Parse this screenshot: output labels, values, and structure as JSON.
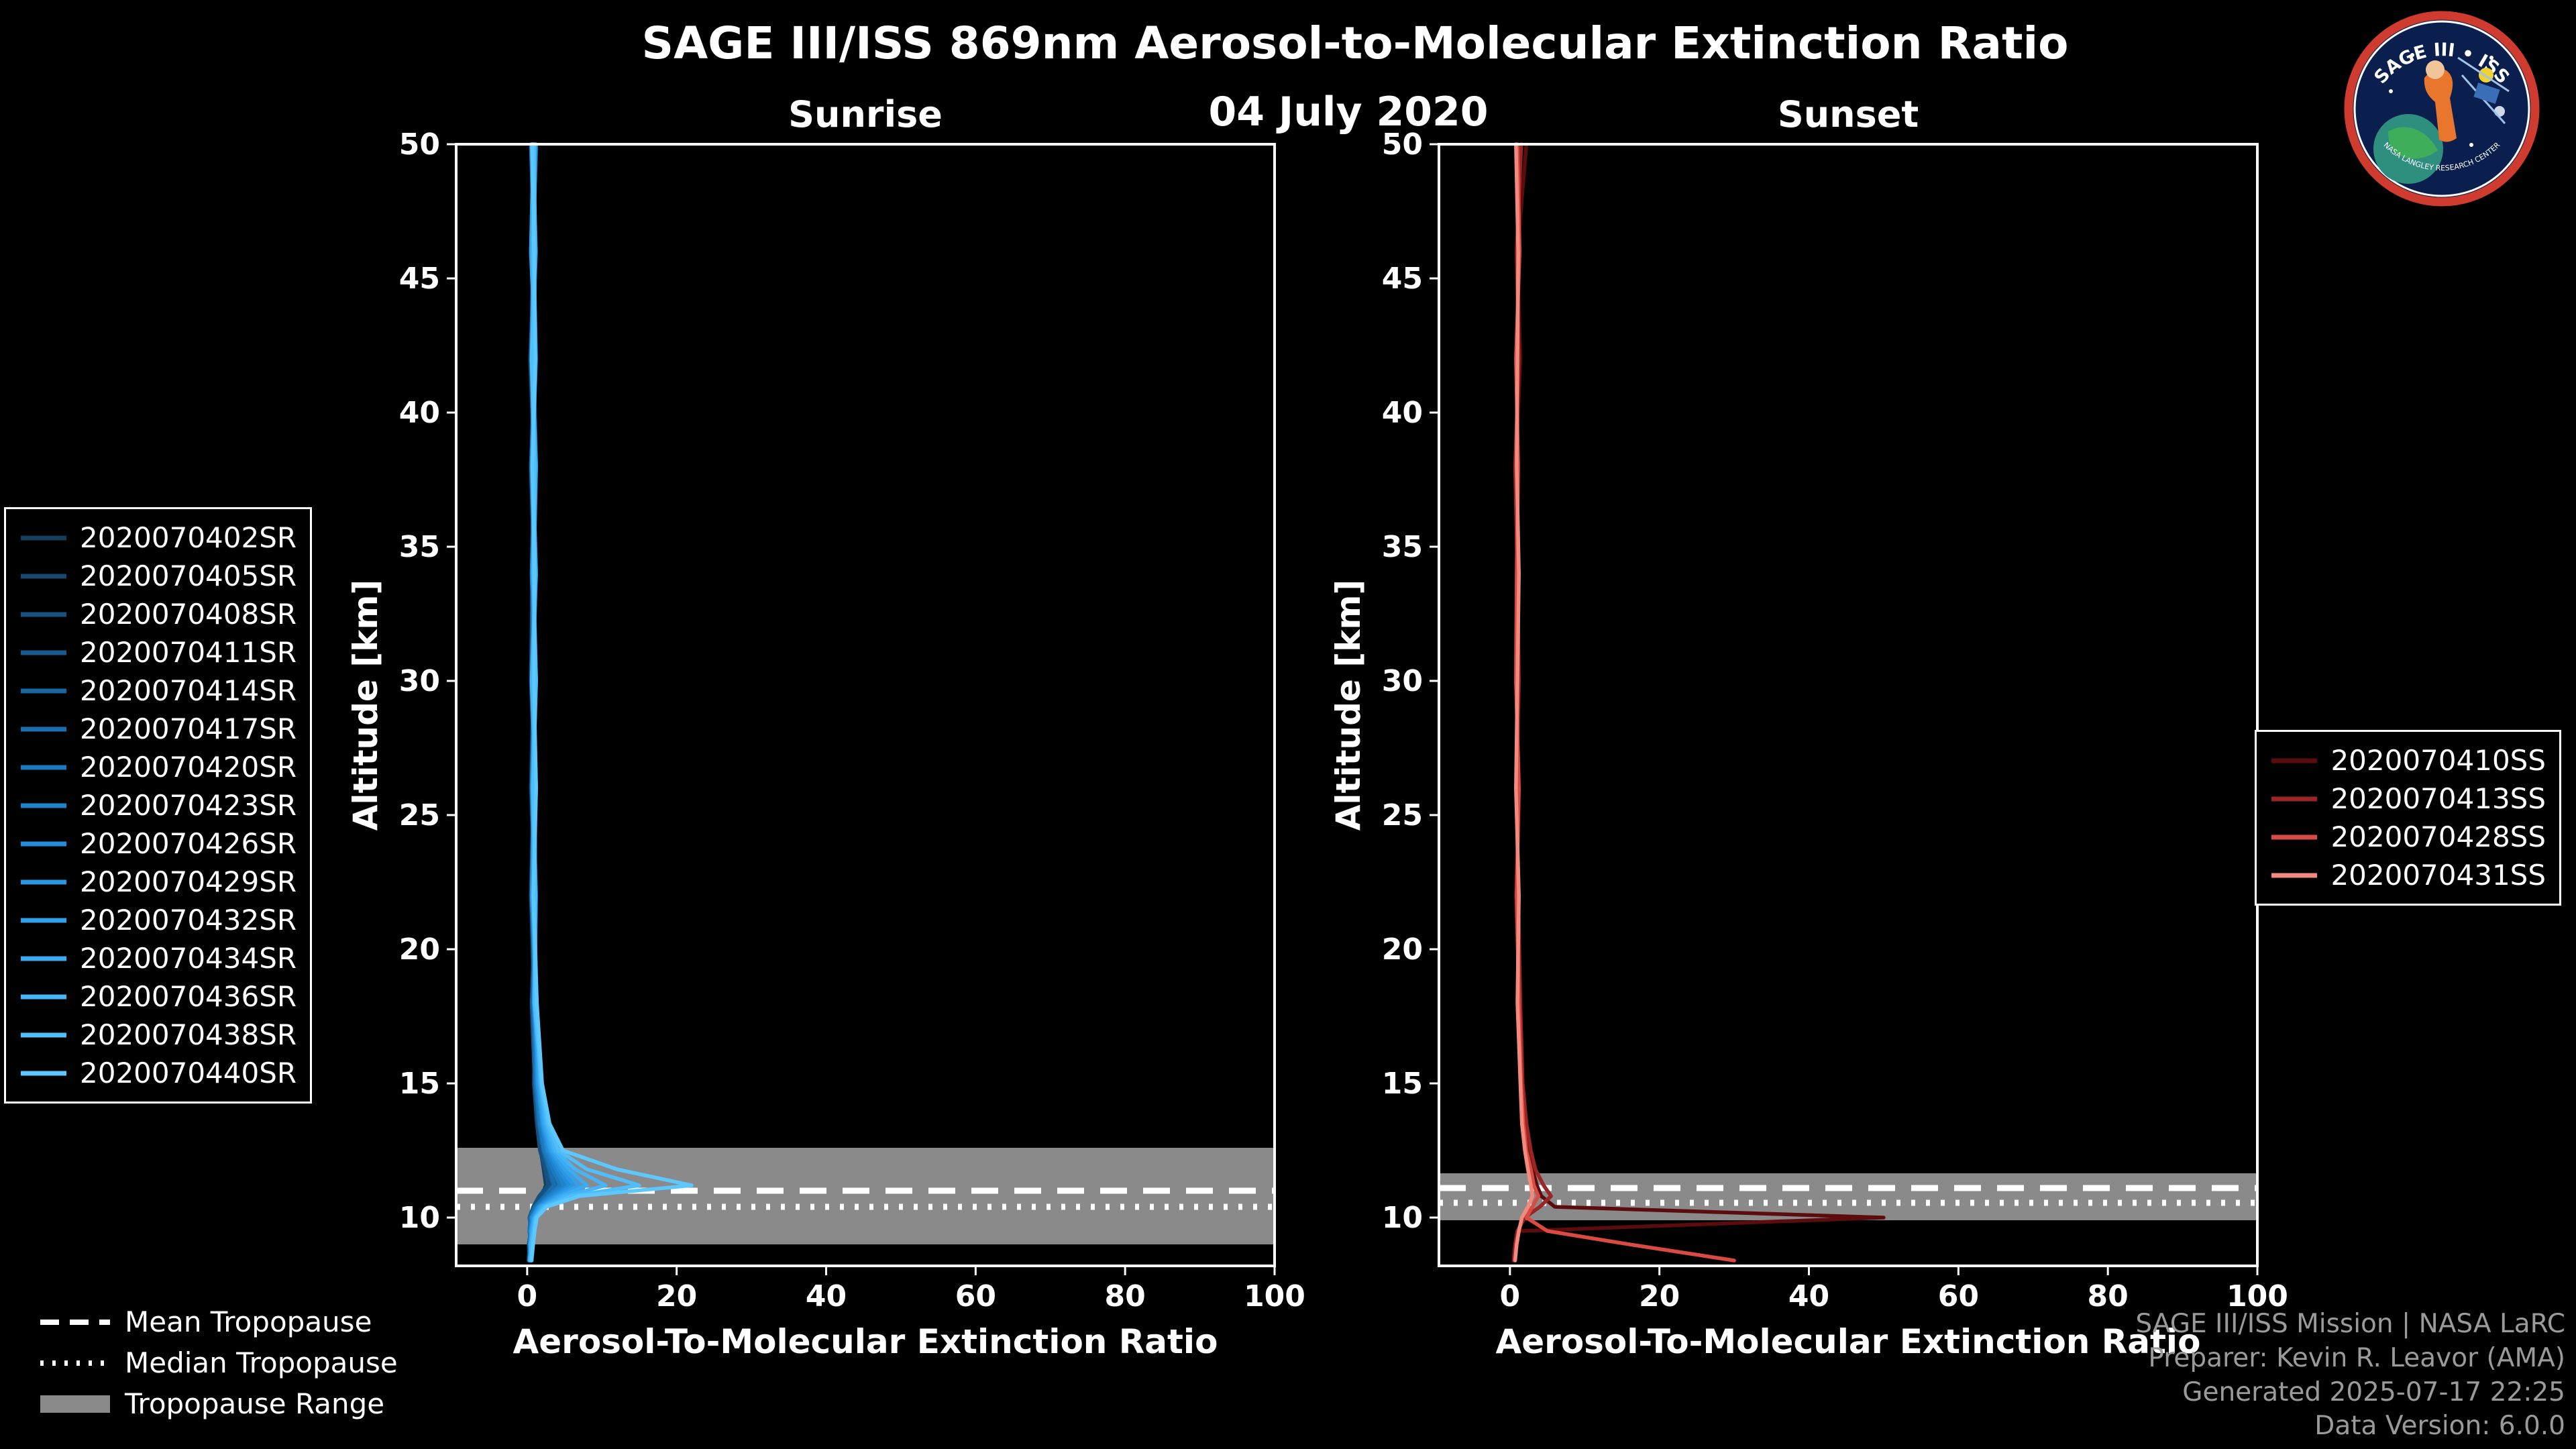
{
  "title": "SAGE III/ISS 869nm Aerosol-to-Molecular Extinction Ratio",
  "subtitle": "04 July 2020",
  "logo": {
    "title": "SAGE III • ISS",
    "ring_text": "NASA LANGLEY RESEARCH CENTER"
  },
  "footer": {
    "lines": [
      "SAGE III/ISS Mission | NASA LaRC",
      "Preparer: Kevin R. Leavor (AMA)",
      "Generated 2025-07-17 22:25",
      "Data Version: 6.0.0"
    ]
  },
  "tropopause_legend": [
    {
      "label": "Mean Tropopause",
      "style": "dashed"
    },
    {
      "label": "Median Tropopause",
      "style": "dotted"
    },
    {
      "label": "Tropopause Range",
      "style": "patch"
    }
  ],
  "style_colors": {
    "background": "#000000",
    "foreground": "#ffffff",
    "tropopause_band": "#8a8a8a",
    "footer_text": "#9a9a9a"
  },
  "chart_data": [
    {
      "type": "line",
      "title": "Sunrise",
      "xlabel": "Aerosol-To-Molecular Extinction Ratio",
      "ylabel": "Altitude [km]",
      "xlim": [
        -9.5,
        100
      ],
      "ylim": [
        8.2,
        50
      ],
      "x_ticks": [
        0,
        20,
        40,
        60,
        80,
        100
      ],
      "y_ticks": [
        50,
        45,
        40,
        35,
        30,
        25,
        20,
        15,
        10
      ],
      "grid": false,
      "legend_position": "left-outside",
      "tropopause": {
        "mean": 11.0,
        "median": 10.4,
        "range": [
          9.0,
          12.6
        ]
      },
      "alts": [
        50,
        46,
        42,
        38,
        34,
        30,
        26,
        22,
        18,
        15,
        13.5,
        12.5,
        11.8,
        11.2,
        10.8,
        10.4,
        10.0,
        9.5,
        9.0,
        8.4
      ],
      "series": [
        {
          "name": "2020070402SR",
          "color": "#14405f",
          "vals": [
            0.9,
            0.5,
            1.1,
            0.7,
            1.2,
            0.8,
            0.5,
            1.0,
            0.7,
            1.1,
            1.4,
            1.8,
            2.2,
            2.5,
            1.8,
            0.9,
            0.4,
            0.6,
            0.3,
            0.2
          ]
        },
        {
          "name": "2020070405SR",
          "color": "#15496f",
          "vals": [
            0.6,
            1.0,
            0.4,
            0.9,
            0.6,
            1.1,
            0.8,
            0.5,
            0.9,
            1.2,
            1.6,
            2.0,
            2.6,
            3.0,
            2.0,
            1.0,
            0.5,
            0.3,
            0.5,
            0.4
          ]
        },
        {
          "name": "2020070408SR",
          "color": "#16527f",
          "vals": [
            1.1,
            0.6,
            0.9,
            1.2,
            0.7,
            0.5,
            1.0,
            0.8,
            1.1,
            0.9,
            1.3,
            1.7,
            2.4,
            2.8,
            1.6,
            0.8,
            0.3,
            0.5,
            0.2,
            0.3
          ]
        },
        {
          "name": "2020070411SR",
          "color": "#175c8f",
          "vals": [
            0.7,
            1.2,
            0.6,
            0.8,
            1.0,
            0.7,
            0.9,
            1.1,
            0.6,
            1.0,
            1.5,
            2.1,
            2.8,
            3.4,
            2.2,
            1.1,
            0.6,
            0.4,
            0.3,
            0.2
          ]
        },
        {
          "name": "2020070414SR",
          "color": "#18659f",
          "vals": [
            0.8,
            0.6,
            1.0,
            0.5,
            0.9,
            1.2,
            0.7,
            0.9,
            1.2,
            1.4,
            1.8,
            2.4,
            3.2,
            4.0,
            2.6,
            1.2,
            0.5,
            0.7,
            0.4,
            0.3
          ]
        },
        {
          "name": "2020070417SR",
          "color": "#196fae",
          "vals": [
            1.0,
            0.8,
            0.5,
            1.1,
            0.8,
            0.6,
            1.1,
            0.7,
            0.9,
            1.1,
            1.6,
            2.2,
            3.0,
            3.6,
            2.4,
            1.0,
            0.4,
            0.3,
            0.6,
            0.4
          ]
        },
        {
          "name": "2020070420SR",
          "color": "#1b79be",
          "vals": [
            0.5,
            0.9,
            1.2,
            0.7,
            1.1,
            0.9,
            0.6,
            1.0,
            0.8,
            1.2,
            1.7,
            2.3,
            3.4,
            4.4,
            2.8,
            1.3,
            0.6,
            0.5,
            0.3,
            0.5
          ]
        },
        {
          "name": "2020070423SR",
          "color": "#1e83cd",
          "vals": [
            0.9,
            0.7,
            0.8,
            1.0,
            0.6,
            1.0,
            0.8,
            1.2,
            1.0,
            1.3,
            1.9,
            2.6,
            3.8,
            5.0,
            3.0,
            1.4,
            0.7,
            0.4,
            0.5,
            0.3
          ]
        },
        {
          "name": "2020070426SR",
          "color": "#238dda",
          "vals": [
            0.7,
            1.1,
            0.9,
            0.6,
            1.0,
            0.8,
            1.2,
            0.9,
            1.1,
            1.5,
            2.0,
            2.8,
            4.2,
            5.6,
            3.4,
            1.5,
            0.6,
            0.8,
            0.4,
            0.6
          ]
        },
        {
          "name": "2020070429SR",
          "color": "#2a97e4",
          "vals": [
            1.2,
            0.8,
            0.6,
            0.9,
            0.7,
            1.1,
            0.9,
            0.6,
            1.2,
            1.4,
            2.1,
            3.0,
            4.6,
            6.2,
            3.8,
            1.6,
            0.8,
            0.5,
            0.7,
            0.4
          ]
        },
        {
          "name": "2020070432SR",
          "color": "#32a1ec",
          "vals": [
            0.8,
            0.5,
            1.1,
            0.8,
            1.2,
            0.7,
            1.0,
            1.1,
            0.9,
            1.6,
            2.2,
            3.2,
            5.0,
            7.0,
            4.2,
            1.8,
            0.9,
            0.6,
            0.4,
            0.5
          ]
        },
        {
          "name": "2020070434SR",
          "color": "#3babf3",
          "vals": [
            0.6,
            1.0,
            0.7,
            1.2,
            0.9,
            1.0,
            0.7,
            0.9,
            1.3,
            1.7,
            2.4,
            3.5,
            5.6,
            8.0,
            4.6,
            2.0,
            1.0,
            0.7,
            0.6,
            0.3
          ]
        },
        {
          "name": "2020070436SR",
          "color": "#45b5f8",
          "vals": [
            1.0,
            0.7,
            0.9,
            0.8,
            1.1,
            0.6,
            1.1,
            1.0,
            1.2,
            1.8,
            2.6,
            3.8,
            6.4,
            10.5,
            5.2,
            2.2,
            1.1,
            0.8,
            0.5,
            0.6
          ]
        },
        {
          "name": "2020070438SR",
          "color": "#50befb",
          "vals": [
            0.9,
            1.1,
            0.6,
            1.0,
            0.8,
            1.2,
            0.8,
            1.1,
            1.0,
            1.9,
            2.8,
            4.2,
            8.0,
            15.0,
            6.0,
            2.4,
            1.2,
            0.9,
            0.7,
            0.5
          ]
        },
        {
          "name": "2020070440SR",
          "color": "#5cc8fe",
          "vals": [
            0.7,
            0.9,
            1.1,
            0.7,
            1.0,
            0.9,
            1.2,
            0.8,
            1.3,
            2.0,
            3.0,
            4.8,
            12.0,
            22.0,
            7.0,
            2.6,
            1.3,
            1.0,
            0.8,
            0.6
          ]
        }
      ]
    },
    {
      "type": "line",
      "title": "Sunset",
      "xlabel": "Aerosol-To-Molecular Extinction Ratio",
      "ylabel": "Altitude [km]",
      "xlim": [
        -9.5,
        100
      ],
      "ylim": [
        8.2,
        50
      ],
      "x_ticks": [
        0,
        20,
        40,
        60,
        80,
        100
      ],
      "y_ticks": [
        50,
        45,
        40,
        35,
        30,
        25,
        20,
        15,
        10
      ],
      "grid": false,
      "legend_position": "right-outside",
      "tropopause": {
        "mean": 11.1,
        "median": 10.55,
        "range": [
          9.9,
          11.65
        ]
      },
      "alts": [
        50,
        46,
        42,
        38,
        34,
        30,
        26,
        22,
        18,
        15,
        13.5,
        12.5,
        11.8,
        11.2,
        10.8,
        10.4,
        10.0,
        9.5,
        9.0,
        8.4
      ],
      "series": [
        {
          "name": "2020070410SS",
          "color": "#5c0c0c",
          "vals": [
            2.2,
            1.0,
            1.4,
            0.8,
            1.1,
            0.9,
            1.2,
            0.8,
            1.3,
            1.6,
            2.0,
            2.4,
            3.0,
            3.6,
            4.2,
            6.0,
            50.0,
            1.5,
            null,
            null
          ]
        },
        {
          "name": "2020070413SS",
          "color": "#992525",
          "vals": [
            1.5,
            0.9,
            1.2,
            0.7,
            1.0,
            1.2,
            0.9,
            1.1,
            1.4,
            1.7,
            2.2,
            2.8,
            3.4,
            4.5,
            5.5,
            4.0,
            2.0,
            1.0,
            0.7,
            0.5
          ]
        },
        {
          "name": "2020070428SS",
          "color": "#d94a42",
          "vals": [
            1.0,
            1.3,
            0.8,
            1.1,
            0.9,
            0.8,
            1.2,
            0.9,
            1.2,
            1.5,
            1.8,
            2.2,
            2.8,
            3.2,
            3.8,
            3.0,
            2.2,
            5.0,
            16.0,
            30.0
          ]
        },
        {
          "name": "2020070431SS",
          "color": "#f28b7d",
          "vals": [
            0.8,
            1.1,
            1.0,
            0.9,
            1.2,
            1.0,
            0.8,
            1.2,
            1.0,
            1.4,
            1.6,
            2.0,
            2.4,
            2.8,
            3.0,
            2.4,
            1.6,
            1.2,
            0.9,
            0.7
          ]
        }
      ]
    }
  ]
}
